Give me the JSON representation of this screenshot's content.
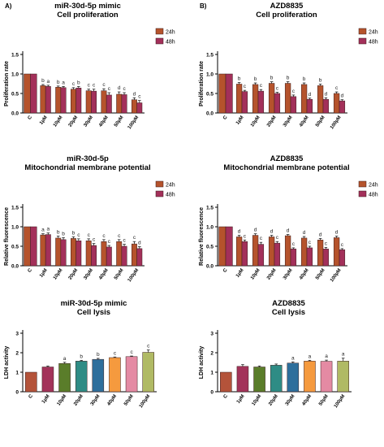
{
  "chart_data": [
    {
      "id": "p1",
      "type": "bar",
      "panel_label": "A)",
      "title": [
        "miR-30d-5p mimic",
        "Cell proliferation"
      ],
      "ylabel": "Proliferation rate",
      "ylim": [
        0,
        1.5
      ],
      "yticks": [
        "0.0",
        "0.5",
        "1.0",
        "1.5"
      ],
      "categories": [
        "C",
        "1µM",
        "10µM",
        "20µM",
        "30µM",
        "40µM",
        "50µM",
        "100µM"
      ],
      "legend": [
        "24h",
        "48h"
      ],
      "series": [
        {
          "name": "24h",
          "values": [
            1.0,
            0.7,
            0.66,
            0.61,
            0.57,
            0.57,
            0.48,
            0.34
          ],
          "errors": [
            0,
            0.03,
            0.03,
            0.04,
            0.04,
            0.05,
            0.06,
            0.05
          ],
          "labels": [
            "",
            "b",
            "b",
            "c",
            "c",
            "c",
            "d",
            "d"
          ]
        },
        {
          "name": "48h",
          "values": [
            1.0,
            0.68,
            0.65,
            0.64,
            0.56,
            0.46,
            0.47,
            0.26
          ],
          "errors": [
            0,
            0.03,
            0.03,
            0.04,
            0.05,
            0.06,
            0.05,
            0.06
          ],
          "labels": [
            "",
            "a",
            "a",
            "b",
            "c",
            "c",
            "c",
            "c"
          ]
        }
      ]
    },
    {
      "id": "p2",
      "type": "bar",
      "panel_label": "B)",
      "title": [
        "AZD8835",
        "Cell proliferation"
      ],
      "ylabel": "Proliferation rate",
      "ylim": [
        0,
        1.5
      ],
      "yticks": [
        "0.0",
        "0.5",
        "1.0",
        "1.5"
      ],
      "categories": [
        "C",
        "1µM",
        "10µM",
        "20µM",
        "30µM",
        "40µM",
        "50µM",
        "100µM"
      ],
      "legend": [
        "24h",
        "48h"
      ],
      "series": [
        {
          "name": "24h",
          "values": [
            1.0,
            0.74,
            0.73,
            0.76,
            0.76,
            0.73,
            0.7,
            0.5
          ],
          "errors": [
            0,
            0.04,
            0.04,
            0.04,
            0.04,
            0.04,
            0.04,
            0.04
          ],
          "labels": [
            "",
            "b",
            "b",
            "b",
            "b",
            "b",
            "b",
            "c"
          ]
        },
        {
          "name": "48h",
          "values": [
            1.0,
            0.55,
            0.56,
            0.5,
            0.42,
            0.35,
            0.35,
            0.31
          ],
          "errors": [
            0,
            0.03,
            0.04,
            0.03,
            0.04,
            0.03,
            0.04,
            0.03
          ],
          "labels": [
            "",
            "c",
            "c",
            "c",
            "c",
            "d",
            "d",
            "d"
          ]
        }
      ]
    },
    {
      "id": "p3",
      "type": "bar",
      "title": [
        "miR-30d-5p",
        "Mitochondrial membrane potential"
      ],
      "ylabel": "Relative fluorescence",
      "ylim": [
        0,
        1.5
      ],
      "yticks": [
        "0.0",
        "0.5",
        "1.0",
        "1.5"
      ],
      "categories": [
        "C",
        "1µM",
        "10µM",
        "20µM",
        "30µM",
        "40µM",
        "50µM",
        "100µM"
      ],
      "legend": [
        "24h",
        "48h"
      ],
      "series": [
        {
          "name": "24h",
          "values": [
            1.0,
            0.79,
            0.71,
            0.7,
            0.64,
            0.62,
            0.62,
            0.56
          ],
          "errors": [
            0,
            0.03,
            0.05,
            0.04,
            0.05,
            0.05,
            0.05,
            0.06
          ],
          "labels": [
            "",
            "a",
            "b",
            "b",
            "c",
            "c",
            "c",
            "c"
          ]
        },
        {
          "name": "48h",
          "values": [
            1.0,
            0.8,
            0.67,
            0.64,
            0.52,
            0.48,
            0.5,
            0.44
          ],
          "errors": [
            0,
            0.04,
            0.05,
            0.05,
            0.05,
            0.04,
            0.05,
            0.05
          ],
          "labels": [
            "",
            "a",
            "b",
            "c",
            "c",
            "c",
            "c",
            "d"
          ]
        }
      ]
    },
    {
      "id": "p4",
      "type": "bar",
      "title": [
        "AZD8835",
        "Mitochondrial membrane potential"
      ],
      "ylabel": "Relative fluorescence",
      "ylim": [
        0,
        1.5
      ],
      "yticks": [
        "0.0",
        "0.5",
        "1.0",
        "1.5"
      ],
      "categories": [
        "C",
        "1µM",
        "10µM",
        "20µM",
        "30µM",
        "40µM",
        "50µM",
        "100µM"
      ],
      "legend": [
        "24h",
        "48h"
      ],
      "series": [
        {
          "name": "24h",
          "values": [
            1.0,
            0.74,
            0.78,
            0.74,
            0.77,
            0.71,
            0.66,
            0.72
          ],
          "errors": [
            0,
            0.04,
            0.04,
            0.04,
            0.03,
            0.04,
            0.04,
            0.04
          ],
          "labels": [
            "",
            "d",
            "d",
            "d",
            "d",
            "d",
            "d",
            "d"
          ]
        },
        {
          "name": "48h",
          "values": [
            1.0,
            0.62,
            0.55,
            0.58,
            0.43,
            0.46,
            0.43,
            0.41
          ],
          "errors": [
            0,
            0.04,
            0.05,
            0.04,
            0.03,
            0.04,
            0.04,
            0.03
          ],
          "labels": [
            "",
            "c",
            "c",
            "c",
            "c",
            "c",
            "c",
            "c"
          ]
        }
      ]
    },
    {
      "id": "p5",
      "type": "bar",
      "title": [
        "miR-30d-5p mimic",
        "Cell lysis"
      ],
      "ylabel": "LDH activity",
      "ylim": [
        0,
        3
      ],
      "yticks": [
        "0",
        "1",
        "2",
        "3"
      ],
      "categories": [
        "C",
        "1µM",
        "10µM",
        "20µM",
        "30µM",
        "40µM",
        "50µM",
        "100µM"
      ],
      "colors": [
        "#b4533a",
        "#a3335a",
        "#5a7d2a",
        "#2e8c85",
        "#2e6f9c",
        "#f59a3e",
        "#e48aa3",
        "#b0ba64"
      ],
      "series": [
        {
          "values": [
            1.0,
            1.27,
            1.45,
            1.57,
            1.66,
            1.75,
            1.8,
            2.02
          ],
          "errors": [
            0,
            0.05,
            0.06,
            0.04,
            0.05,
            0.03,
            0.03,
            0.12
          ],
          "labels": [
            "",
            "",
            "a",
            "b",
            "b",
            "c",
            "c",
            "c"
          ]
        }
      ]
    },
    {
      "id": "p6",
      "type": "bar",
      "title": [
        "AZD8835",
        "Cell lysis"
      ],
      "ylabel": "LDH activity",
      "ylim": [
        0,
        3
      ],
      "yticks": [
        "0",
        "1",
        "2",
        "3"
      ],
      "categories": [
        "C",
        "1µM",
        "10µM",
        "20µM",
        "30µM",
        "40µM",
        "50µM",
        "100µM"
      ],
      "colors": [
        "#b4533a",
        "#a3335a",
        "#5a7d2a",
        "#2e8c85",
        "#2e6f9c",
        "#f59a3e",
        "#e48aa3",
        "#b0ba64"
      ],
      "series": [
        {
          "values": [
            1.0,
            1.3,
            1.27,
            1.36,
            1.47,
            1.57,
            1.56,
            1.57
          ],
          "errors": [
            0,
            0.09,
            0.05,
            0.06,
            0.06,
            0.04,
            0.06,
            0.15
          ],
          "labels": [
            "",
            "",
            "",
            "",
            "a",
            "a",
            "a",
            "a"
          ]
        }
      ]
    }
  ],
  "series_colors": {
    "24h": "#b5532c",
    "48h": "#a3305a"
  },
  "error_color": "#222222"
}
